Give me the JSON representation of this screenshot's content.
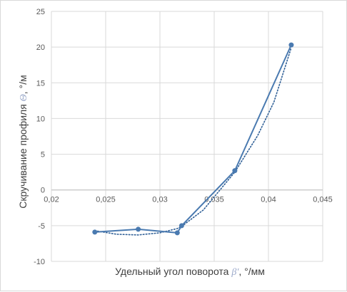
{
  "chart_data": {
    "type": "scatter",
    "xlabel": "Удельный угол поворота ",
    "xlabel_symbol": "β'",
    "xlabel_unit": ", °/мм",
    "ylabel": "Скручивание профиля ",
    "ylabel_symbol": "Θ",
    "ylabel_unit": ", °/м",
    "xlim": [
      0.02,
      0.045
    ],
    "ylim": [
      -10,
      25
    ],
    "x_ticks": [
      "0,02",
      "0,025",
      "0,03",
      "0,035",
      "0,04",
      "0,045"
    ],
    "y_ticks": [
      "-10",
      "-5",
      "0",
      "5",
      "10",
      "15",
      "20",
      "25"
    ],
    "x_tick_values": [
      0.02,
      0.025,
      0.03,
      0.035,
      0.04,
      0.045
    ],
    "y_tick_values": [
      -10,
      -5,
      0,
      5,
      10,
      15,
      20,
      25
    ],
    "grid": true,
    "legend": "none",
    "series": [
      {
        "points": [
          [
            0.024,
            -5.9
          ],
          [
            0.028,
            -5.5
          ],
          [
            0.0316,
            -6.0
          ],
          [
            0.032,
            -5.0
          ],
          [
            0.0369,
            2.7
          ],
          [
            0.0421,
            20.3
          ]
        ],
        "color": "#4a7ab0",
        "style": "solid-with-markers"
      },
      {
        "points": [
          [
            0.024,
            -5.7
          ],
          [
            0.026,
            -6.2
          ],
          [
            0.028,
            -6.3
          ],
          [
            0.03,
            -6.0
          ],
          [
            0.0316,
            -5.4
          ],
          [
            0.032,
            -5.1
          ],
          [
            0.034,
            -2.8
          ],
          [
            0.0369,
            2.5
          ],
          [
            0.039,
            7.6
          ],
          [
            0.0405,
            12.3
          ],
          [
            0.0421,
            19.9
          ]
        ],
        "color": "#2f5f96",
        "style": "dotted-trendline"
      }
    ]
  }
}
